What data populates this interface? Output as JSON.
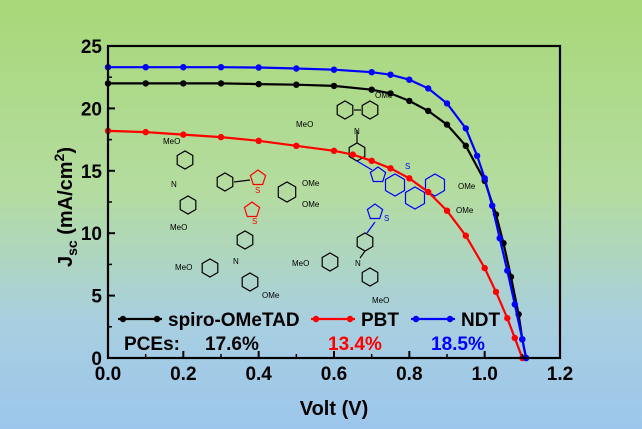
{
  "chart_data": {
    "type": "line",
    "xlabel": "Volt (V)",
    "ylabel": {
      "main": "J",
      "sub": "sc",
      "rest": " (mA/cm",
      "sup": "2",
      "end": ")"
    },
    "xlim": [
      0.0,
      1.2
    ],
    "ylim": [
      0,
      25
    ],
    "xticks": [
      "0.0",
      "0.2",
      "0.4",
      "0.6",
      "0.8",
      "1.0",
      "1.2"
    ],
    "yticks": [
      "0",
      "5",
      "10",
      "15",
      "20",
      "25"
    ],
    "grid": false,
    "legend_position": "bottom-left",
    "pce_label": "PCEs:",
    "series": [
      {
        "name": "spiro-OMeTAD",
        "color": "#000000",
        "pce": "17.6%",
        "points": [
          [
            0.0,
            22.0
          ],
          [
            0.1,
            22.0
          ],
          [
            0.2,
            22.0
          ],
          [
            0.3,
            22.0
          ],
          [
            0.4,
            21.95
          ],
          [
            0.5,
            21.9
          ],
          [
            0.6,
            21.8
          ],
          [
            0.7,
            21.5
          ],
          [
            0.75,
            21.2
          ],
          [
            0.8,
            20.6
          ],
          [
            0.85,
            19.8
          ],
          [
            0.9,
            18.7
          ],
          [
            0.95,
            17.0
          ],
          [
            1.0,
            14.2
          ],
          [
            1.03,
            11.5
          ],
          [
            1.05,
            9.2
          ],
          [
            1.07,
            6.5
          ],
          [
            1.09,
            3.5
          ],
          [
            1.1,
            1.5
          ],
          [
            1.11,
            0.0
          ]
        ]
      },
      {
        "name": "PBT",
        "color": "#ff0000",
        "pce": "13.4%",
        "points": [
          [
            0.0,
            18.2
          ],
          [
            0.1,
            18.1
          ],
          [
            0.2,
            17.9
          ],
          [
            0.3,
            17.7
          ],
          [
            0.4,
            17.4
          ],
          [
            0.5,
            17.0
          ],
          [
            0.6,
            16.6
          ],
          [
            0.65,
            16.3
          ],
          [
            0.7,
            15.8
          ],
          [
            0.75,
            15.2
          ],
          [
            0.8,
            14.4
          ],
          [
            0.85,
            13.3
          ],
          [
            0.9,
            11.8
          ],
          [
            0.95,
            9.8
          ],
          [
            1.0,
            7.2
          ],
          [
            1.03,
            5.3
          ],
          [
            1.06,
            3.2
          ],
          [
            1.08,
            1.6
          ],
          [
            1.1,
            0.0
          ]
        ]
      },
      {
        "name": "NDT",
        "color": "#0000ff",
        "pce": "18.5%",
        "points": [
          [
            0.0,
            23.3
          ],
          [
            0.1,
            23.3
          ],
          [
            0.2,
            23.3
          ],
          [
            0.3,
            23.3
          ],
          [
            0.4,
            23.28
          ],
          [
            0.5,
            23.2
          ],
          [
            0.6,
            23.1
          ],
          [
            0.7,
            22.9
          ],
          [
            0.75,
            22.7
          ],
          [
            0.8,
            22.3
          ],
          [
            0.85,
            21.6
          ],
          [
            0.9,
            20.4
          ],
          [
            0.95,
            18.4
          ],
          [
            0.98,
            16.2
          ],
          [
            1.0,
            14.4
          ],
          [
            1.02,
            12.2
          ],
          [
            1.04,
            9.6
          ],
          [
            1.06,
            7.0
          ],
          [
            1.08,
            4.3
          ],
          [
            1.1,
            1.5
          ],
          [
            1.11,
            0.0
          ]
        ]
      }
    ],
    "annotations": {
      "molecule_labels": [
        "OMe",
        "OMe",
        "OMe",
        "S",
        "S",
        "N",
        "N",
        "MeO",
        "MeO",
        "MeO",
        "MeO",
        "OMe",
        "OMe",
        "S",
        "S",
        "N",
        "N",
        "MeO",
        "MeO",
        "MeO",
        "OMe",
        "OMe"
      ]
    }
  }
}
